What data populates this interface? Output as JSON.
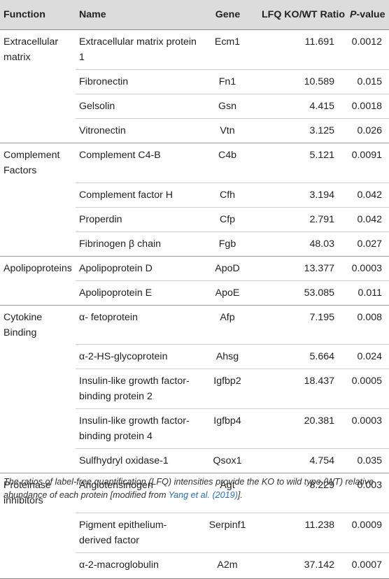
{
  "headers": {
    "function": "Function",
    "name": "Name",
    "gene": "Gene",
    "ratio": "LFQ KO/WT Ratio",
    "p_italic": "P",
    "p_rest": "-value"
  },
  "rows": [
    {
      "function": "Extracellular matrix",
      "name": "Extracellular matrix protein 1",
      "gene": "Ecm1",
      "ratio": "11.691",
      "p": "0.0012"
    },
    {
      "function": "",
      "name": "Fibronectin",
      "gene": "Fn1",
      "ratio": "10.589",
      "p": "0.015"
    },
    {
      "function": "",
      "name": "Gelsolin",
      "gene": "Gsn",
      "ratio": "4.415",
      "p": "0.0018"
    },
    {
      "function": "",
      "name": "Vitronectin",
      "gene": "Vtn",
      "ratio": "3.125",
      "p": "0.026"
    },
    {
      "function": "Complement Factors",
      "name": "Complement C4-B",
      "gene": "C4b",
      "ratio": "5.121",
      "p": "0.0091"
    },
    {
      "function": "",
      "name": "Complement factor H",
      "gene": "Cfh",
      "ratio": "3.194",
      "p": "0.042"
    },
    {
      "function": "",
      "name": "Properdin",
      "gene": "Cfp",
      "ratio": "2.791",
      "p": "0.042"
    },
    {
      "function": "",
      "name": "Fibrinogen β chain",
      "gene": "Fgb",
      "ratio": "48.03",
      "p": "0.027"
    },
    {
      "function": "Apolipoproteins",
      "name": "Apolipoprotein D",
      "gene": "ApoD",
      "ratio": "13.377",
      "p": "0.0003"
    },
    {
      "function": "",
      "name": "Apolipoprotein E",
      "gene": "ApoE",
      "ratio": "53.085",
      "p": "0.011"
    },
    {
      "function": "Cytokine Binding",
      "name": "α- fetoprotein",
      "gene": "Afp",
      "ratio": "7.195",
      "p": "0.008"
    },
    {
      "function": "",
      "name": "α-2-HS-glycoprotein",
      "gene": "Ahsg",
      "ratio": "5.664",
      "p": "0.024"
    },
    {
      "function": "",
      "name": "Insulin-like growth factor-binding protein 2",
      "gene": "Igfbp2",
      "ratio": "18.437",
      "p": "0.0005"
    },
    {
      "function": "",
      "name": "Insulin-like growth factor-binding protein 4",
      "gene": "Igfbp4",
      "ratio": "20.381",
      "p": "0.0003"
    },
    {
      "function": "",
      "name": "Sulfhydryl oxidase-1",
      "gene": "Qsox1",
      "ratio": "4.754",
      "p": "0.035"
    },
    {
      "function": "Proteinase inhibitors",
      "name": "Angiotensinogen",
      "gene": "Agt",
      "ratio": "8.229",
      "p": "0.003"
    },
    {
      "function": "",
      "name": "Pigment epithelium-derived factor",
      "gene": "Serpinf1",
      "ratio": "11.238",
      "p": "0.0009"
    },
    {
      "function": "",
      "name": "α-2-macroglobulin",
      "gene": "A2m",
      "ratio": "37.142",
      "p": "0.0007"
    }
  ],
  "caption": {
    "text": "The ratios of label-free quantification (LFQ) intensities provide the KO to wild type (WT) relative abundance of each protein [modified from ",
    "ref": "Yang et al. (2019)",
    "end": "]."
  }
}
